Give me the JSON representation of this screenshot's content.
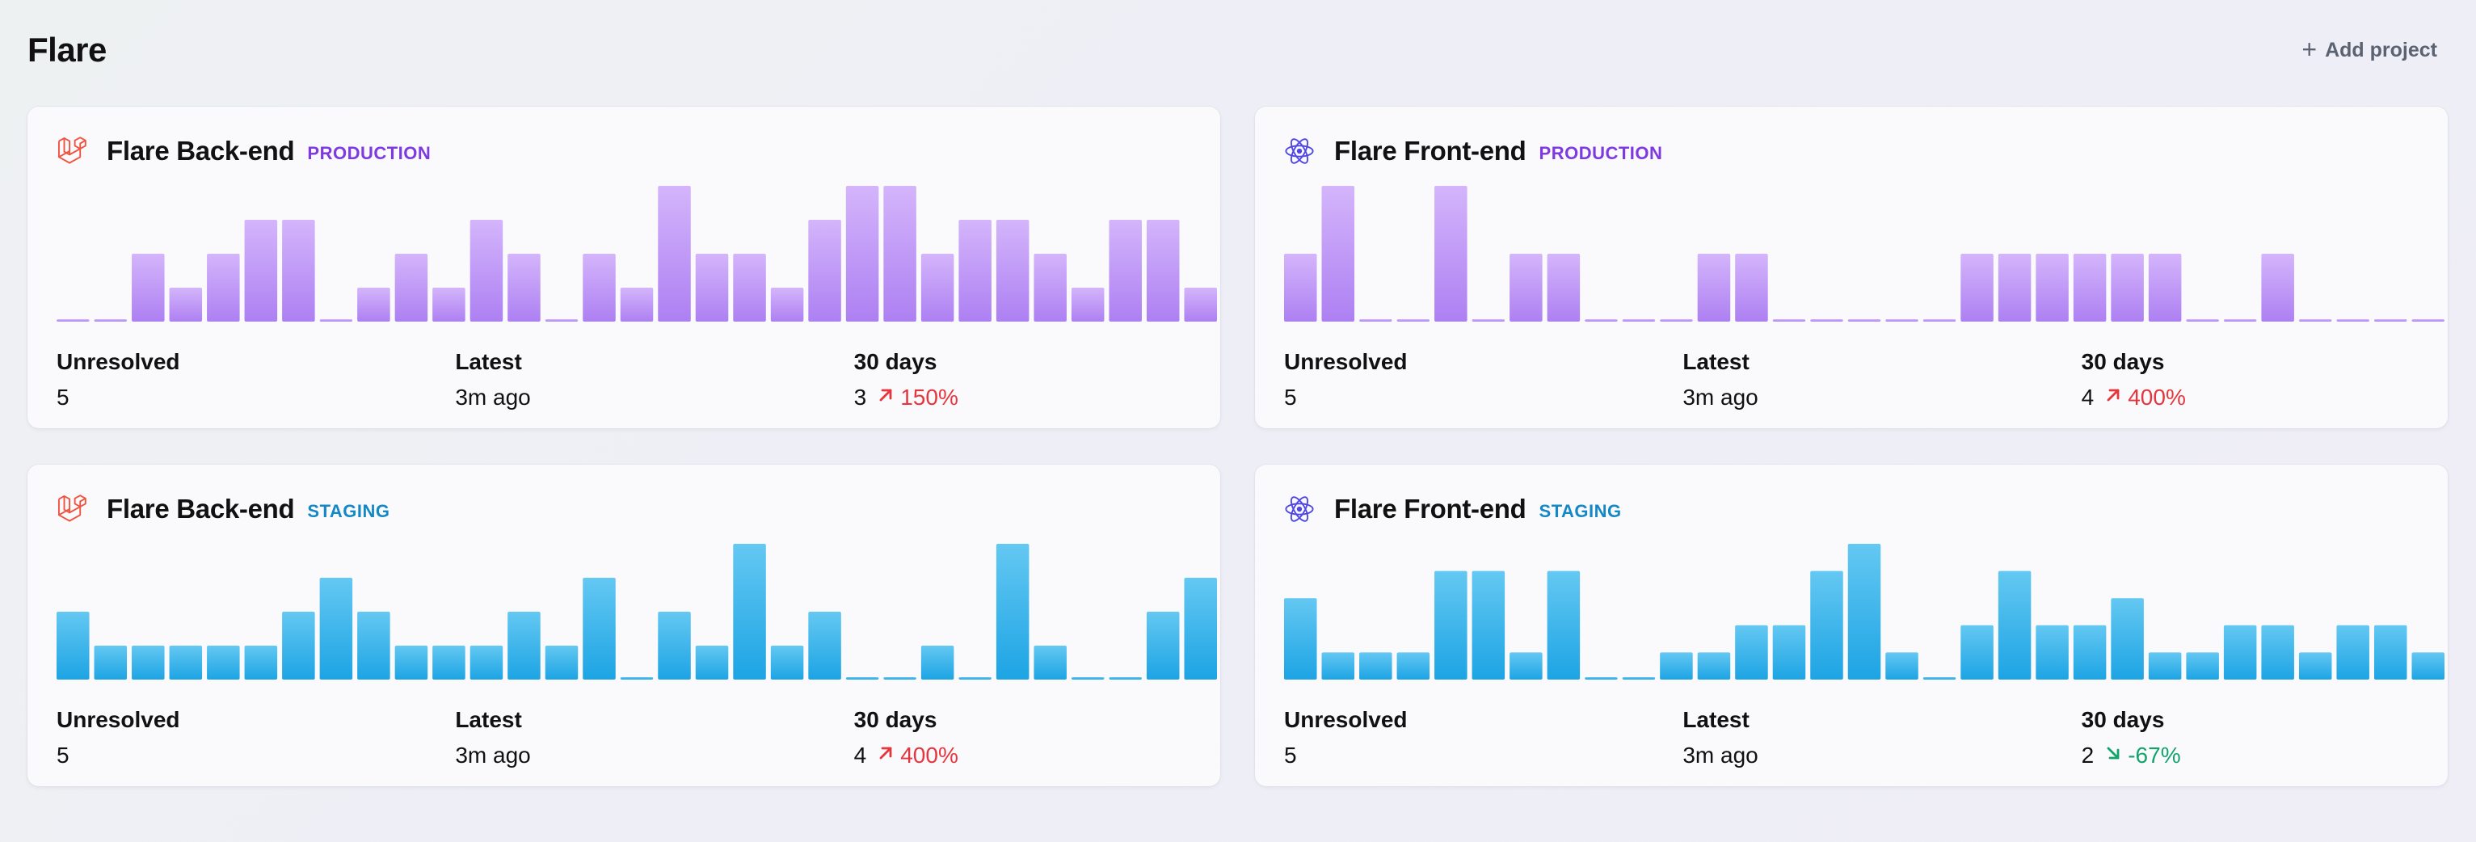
{
  "app": {
    "title": "Flare",
    "add_project_label": "Add project"
  },
  "colors": {
    "production_bar_top": "#d4b5fb",
    "production_bar_bottom": "#ad80f2",
    "staging_bar_top": "#64c8f2",
    "staging_bar_bottom": "#1da4e4",
    "badge_production": "#7e3ae0",
    "badge_staging": "#1488c6",
    "trend_up": "#e5363e",
    "trend_down": "#13a46b"
  },
  "labels": {
    "unresolved": "Unresolved",
    "latest": "Latest",
    "thirty_days": "30 days"
  },
  "projects": [
    {
      "name": "Flare Back-end",
      "environment": "PRODUCTION",
      "env_class": "production",
      "logo": "laravel-icon",
      "unresolved": "5",
      "latest": "3m ago",
      "thirty_days_count": "3",
      "thirty_days_change": "150%",
      "trend": "up",
      "trend_icon": "arrow-up-right-icon",
      "chart_data": {
        "type": "bar",
        "values": [
          0,
          0,
          2,
          1,
          2,
          3,
          3,
          0,
          1,
          2,
          1,
          3,
          2,
          0,
          2,
          1,
          4,
          2,
          2,
          1,
          3,
          4,
          4,
          2,
          3,
          3,
          2,
          1,
          3,
          3,
          1
        ],
        "ylim": [
          0,
          4
        ]
      }
    },
    {
      "name": "Flare Front-end",
      "environment": "PRODUCTION",
      "env_class": "production",
      "logo": "react-icon",
      "unresolved": "5",
      "latest": "3m ago",
      "thirty_days_count": "4",
      "thirty_days_change": "400%",
      "trend": "up",
      "trend_icon": "arrow-up-right-icon",
      "chart_data": {
        "type": "bar",
        "values": [
          2,
          4,
          0,
          0,
          4,
          0,
          2,
          2,
          0,
          0,
          0,
          2,
          2,
          0,
          0,
          0,
          0,
          0,
          2,
          2,
          2,
          2,
          2,
          2,
          0,
          0,
          2,
          0,
          0,
          0,
          0
        ],
        "ylim": [
          0,
          4
        ]
      }
    },
    {
      "name": "Flare Back-end",
      "environment": "STAGING",
      "env_class": "staging",
      "logo": "laravel-icon",
      "unresolved": "5",
      "latest": "3m ago",
      "thirty_days_count": "4",
      "thirty_days_change": "400%",
      "trend": "up",
      "trend_icon": "arrow-up-right-icon",
      "chart_data": {
        "type": "bar",
        "values": [
          2,
          1,
          1,
          1,
          1,
          1,
          2,
          3,
          2,
          1,
          1,
          1,
          2,
          1,
          3,
          0,
          2,
          1,
          4,
          1,
          2,
          0,
          0,
          1,
          0,
          4,
          1,
          0,
          0,
          2,
          3
        ],
        "ylim": [
          0,
          4
        ]
      }
    },
    {
      "name": "Flare Front-end",
      "environment": "STAGING",
      "env_class": "staging",
      "logo": "react-icon",
      "unresolved": "5",
      "latest": "3m ago",
      "thirty_days_count": "2",
      "thirty_days_change": "-67%",
      "trend": "down",
      "trend_icon": "arrow-down-right-icon",
      "chart_data": {
        "type": "bar",
        "values": [
          3,
          1,
          1,
          1,
          4,
          4,
          1,
          4,
          0,
          0,
          1,
          1,
          2,
          2,
          4,
          5,
          1,
          0,
          2,
          4,
          2,
          2,
          3,
          1,
          1,
          2,
          2,
          1,
          2,
          2,
          1
        ],
        "ylim": [
          0,
          5
        ]
      }
    }
  ]
}
